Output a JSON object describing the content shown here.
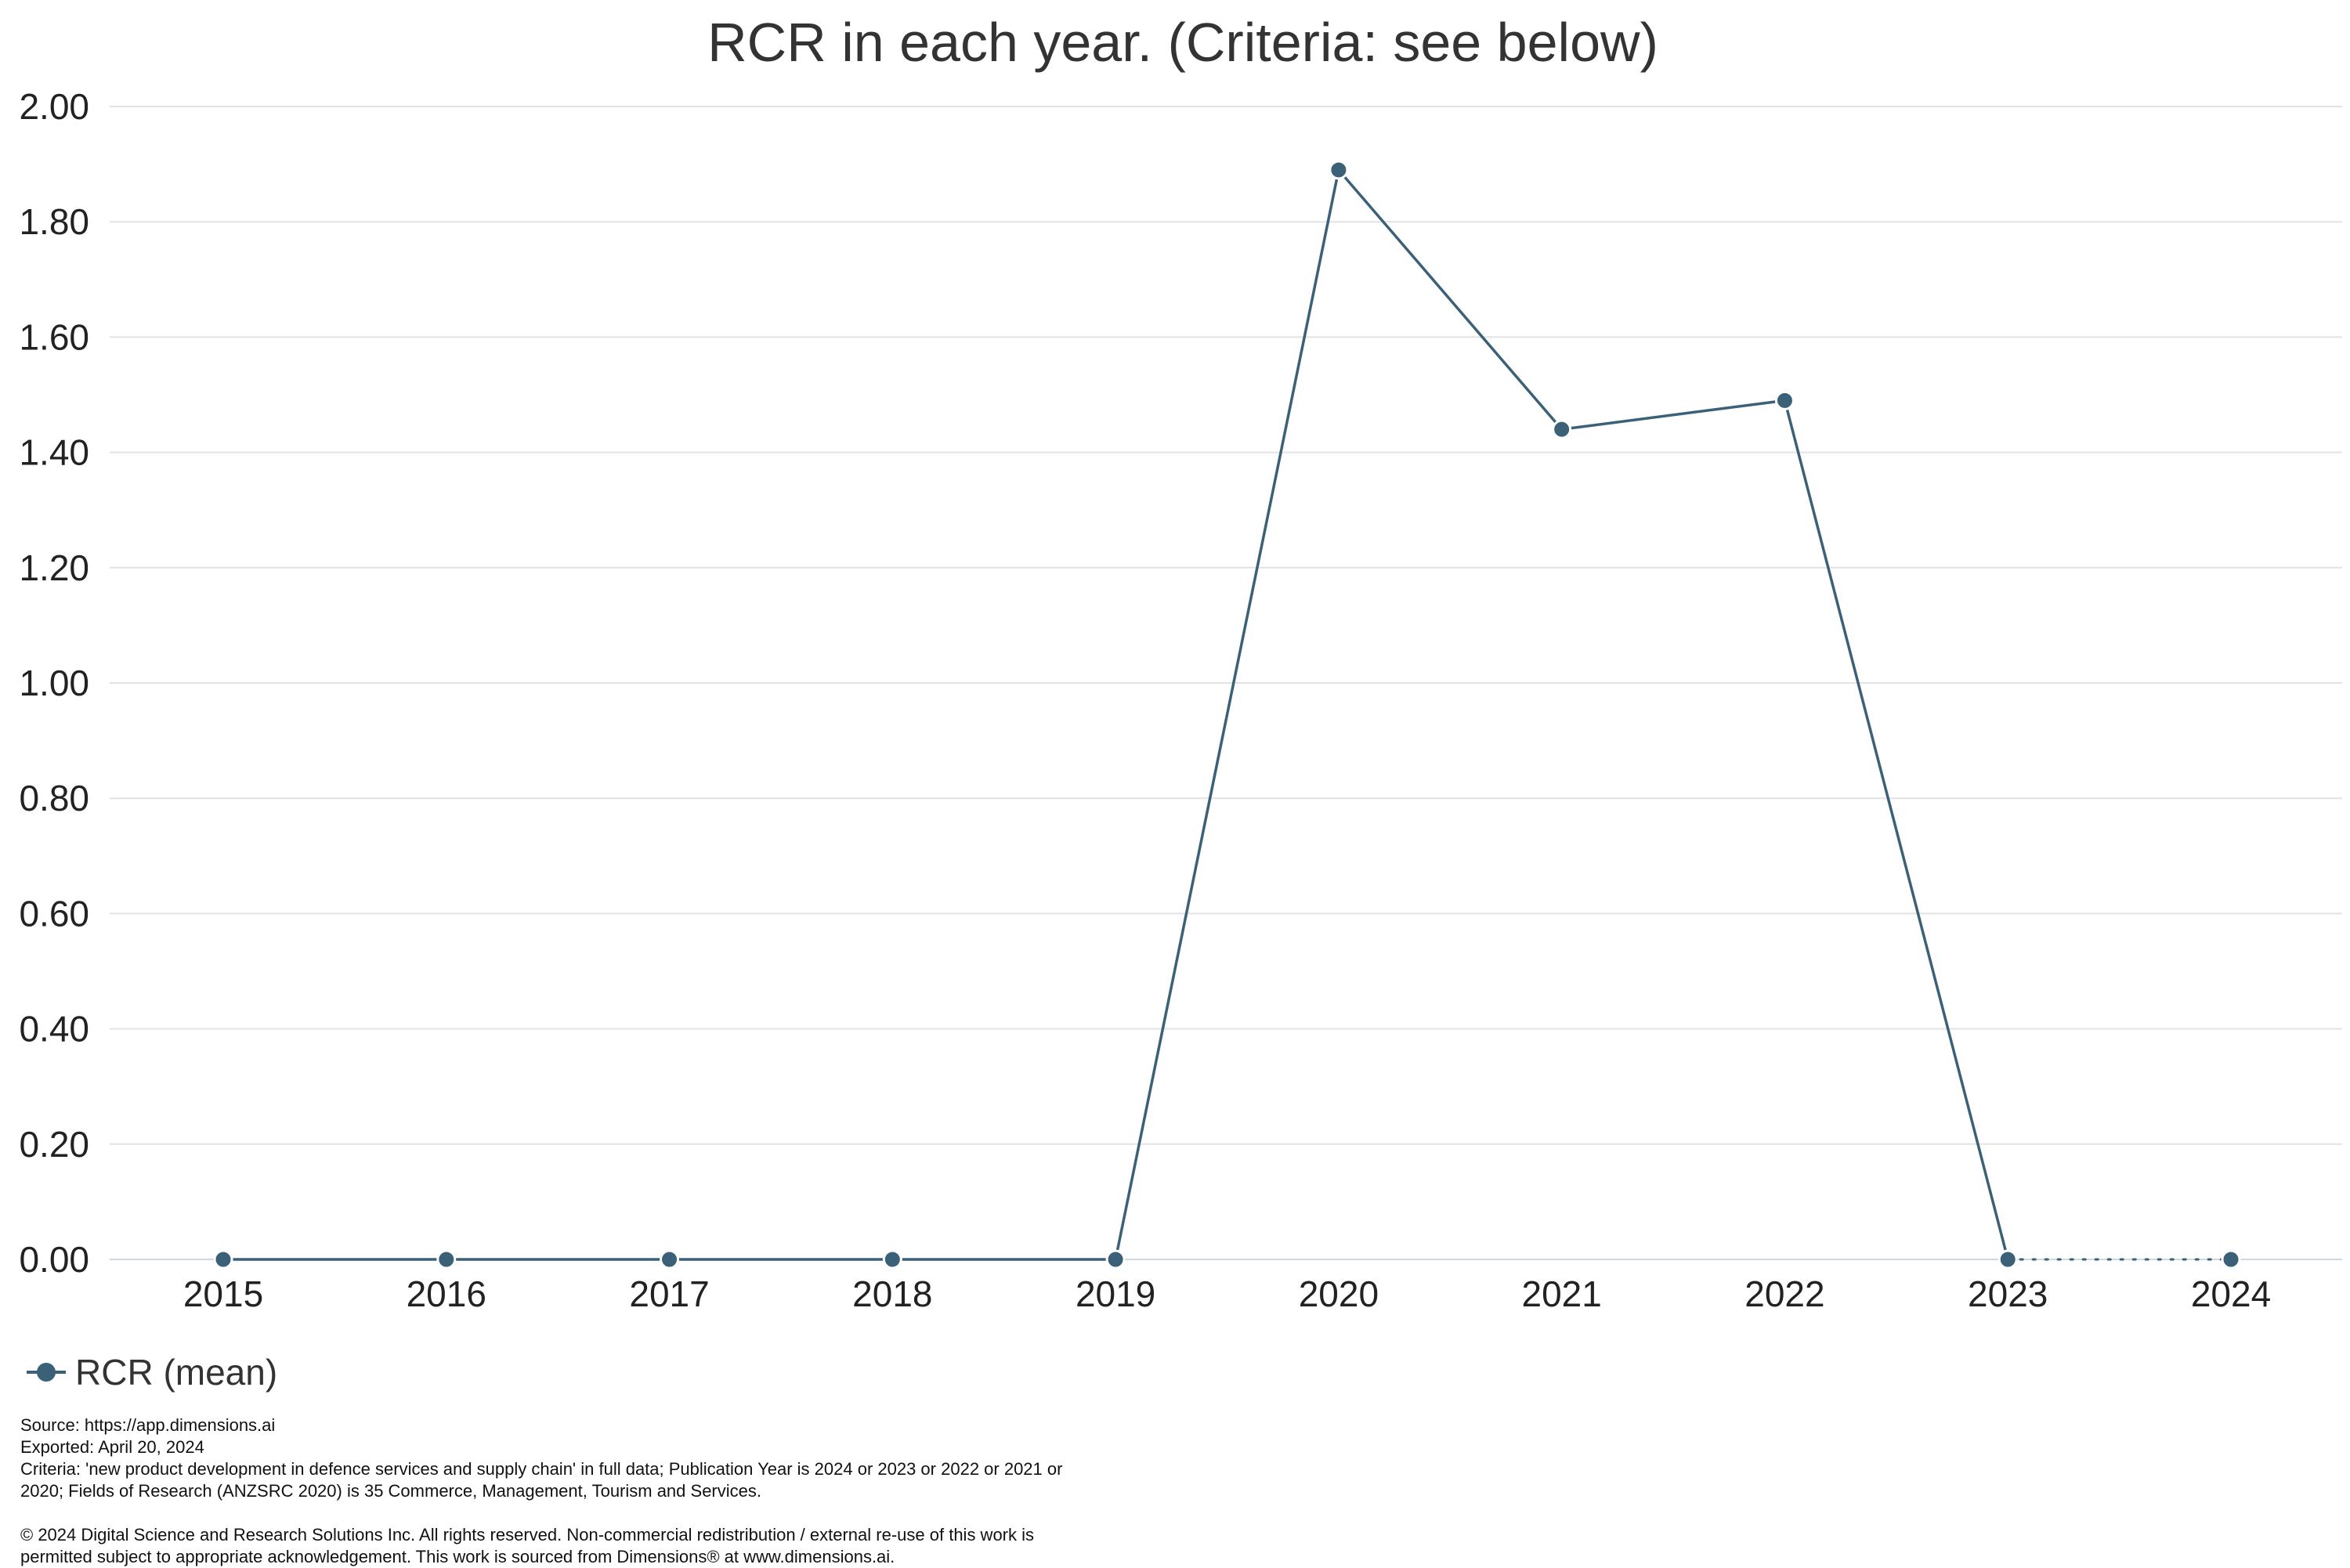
{
  "chart_data": {
    "type": "line",
    "title": "RCR in each year. (Criteria: see below)",
    "xlabel": "",
    "ylabel": "",
    "categories": [
      "2015",
      "2016",
      "2017",
      "2018",
      "2019",
      "2020",
      "2021",
      "2022",
      "2023",
      "2024"
    ],
    "series": [
      {
        "name": "RCR (mean)",
        "values": [
          0,
          0,
          0,
          0,
          0,
          1.89,
          1.44,
          1.49,
          0,
          0
        ],
        "color": "#3b6178"
      }
    ],
    "projected_segment": {
      "from": "2023",
      "to": "2024",
      "style": "dotted"
    },
    "ylim": [
      0,
      2.0
    ],
    "yticks": [
      "0.00",
      "0.20",
      "0.40",
      "0.60",
      "0.80",
      "1.00",
      "1.20",
      "1.40",
      "1.60",
      "1.80",
      "2.00"
    ],
    "grid": true,
    "legend_position": "bottom-left"
  },
  "footer": {
    "source": "Source: https://app.dimensions.ai",
    "exported": "Exported: April 20, 2024",
    "criteria_line1": "Criteria: 'new product development in defence services and supply chain' in full data; Publication Year is 2024 or 2023 or 2022 or 2021 or",
    "criteria_line2": "2020; Fields of Research (ANZSRC 2020) is 35 Commerce, Management, Tourism and Services.",
    "copyright_line1": "© 2024 Digital Science and Research Solutions Inc. All rights reserved. Non-commercial redistribution / external re-use of this work is",
    "copyright_line2": "permitted subject to appropriate acknowledgement. This work is sourced from Dimensions® at www.dimensions.ai."
  }
}
